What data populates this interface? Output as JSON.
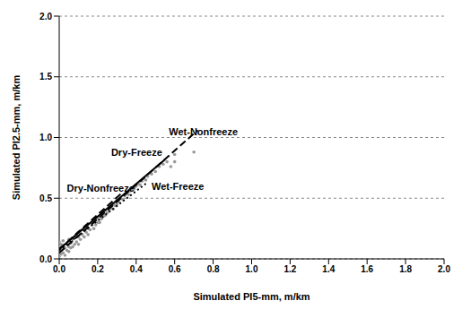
{
  "chart_data": {
    "type": "scatter",
    "x_label": "Simulated PI5-mm, m/km",
    "y_label": "Simulated PI2.5-mm, m/km",
    "xlim": [
      0,
      2
    ],
    "ylim": [
      0,
      2
    ],
    "xticks": [
      {
        "value": 0,
        "label": "0.0"
      },
      0.2,
      0.4,
      0.6,
      0.8,
      {
        "value": 1,
        "label": "1.0"
      },
      1.2,
      1.4,
      1.6,
      1.8,
      {
        "value": 2,
        "label": "2.0"
      }
    ],
    "yticks": [
      {
        "value": 0,
        "label": "0.0"
      },
      0.5,
      {
        "value": 1,
        "label": "1.0"
      },
      1.5,
      {
        "value": 2,
        "label": "2.0"
      }
    ],
    "grid": true,
    "series": [
      {
        "type": "scatter",
        "color": "#999999",
        "marker": "circle",
        "x": [
          0,
          0,
          0,
          0,
          0.01,
          0.01,
          0.01,
          0.02,
          0.02,
          0.02,
          0.03,
          0.03,
          0.04,
          0.04,
          0.05,
          0.05,
          0.05,
          0.06,
          0.06,
          0.07,
          0.07,
          0.08,
          0.08,
          0.09,
          0.1,
          0.1,
          0.1,
          0.11,
          0.12,
          0.12,
          0.13,
          0.14,
          0.14,
          0.15,
          0.15,
          0.16,
          0.17,
          0.18,
          0.18,
          0.19,
          0.2,
          0.2,
          0.21,
          0.22,
          0.22,
          0.23,
          0.24,
          0.24,
          0.25,
          0.26,
          0.27,
          0.28,
          0.28,
          0.29,
          0.3,
          0.3,
          0.31,
          0.32,
          0.33,
          0.34,
          0.35,
          0.36,
          0.37,
          0.38,
          0.39,
          0.4,
          0.41,
          0.42,
          0.43,
          0.44,
          0.45,
          0.46,
          0.48,
          0.5,
          0.52,
          0.54,
          0.56,
          0.58,
          0.6,
          0.6,
          0.7
        ],
        "values": [
          0.02,
          0.06,
          0.1,
          0.14,
          0.04,
          0.08,
          0.12,
          0.05,
          0.1,
          0.15,
          0.03,
          0.09,
          0.07,
          0.12,
          0.06,
          0.1,
          0.16,
          0.09,
          0.13,
          0.1,
          0.16,
          0.12,
          0.18,
          0.14,
          0.12,
          0.18,
          0.22,
          0.16,
          0.2,
          0.24,
          0.18,
          0.22,
          0.27,
          0.2,
          0.25,
          0.24,
          0.28,
          0.25,
          0.3,
          0.28,
          0.3,
          0.34,
          0.3,
          0.33,
          0.37,
          0.35,
          0.36,
          0.4,
          0.38,
          0.4,
          0.42,
          0.41,
          0.45,
          0.44,
          0.45,
          0.48,
          0.47,
          0.5,
          0.49,
          0.52,
          0.54,
          0.53,
          0.56,
          0.57,
          0.58,
          0.6,
          0.62,
          0.61,
          0.64,
          0.66,
          0.65,
          0.68,
          0.7,
          0.72,
          0.76,
          0.78,
          0.8,
          0.76,
          0.8,
          0.86,
          0.88
        ]
      },
      {
        "type": "line",
        "color": "#000000",
        "line_style": "dashed",
        "marker": "none",
        "x": [
          0,
          0.33
        ],
        "values": [
          0.08,
          0.55
        ]
      },
      {
        "type": "line",
        "color": "#000000",
        "line_style": "solid",
        "marker": "none",
        "x": [
          0,
          0.55
        ],
        "values": [
          0.08,
          0.82
        ]
      },
      {
        "type": "line",
        "color": "#000000",
        "line_style": "dashed",
        "marker": "none",
        "x": [
          0,
          0.72
        ],
        "values": [
          0.05,
          1.06
        ]
      },
      {
        "type": "line",
        "color": "#000000",
        "line_style": "dotted",
        "marker": "none",
        "x": [
          0,
          0.45
        ],
        "values": [
          0.07,
          0.62
        ]
      }
    ],
    "annotations": [
      {
        "text": "Dry-Nonfreeze",
        "x": 0.04,
        "y": 0.58
      },
      {
        "text": "Dry-Freeze",
        "x": 0.27,
        "y": 0.88
      },
      {
        "text": "Wet-Nonfreeze",
        "x": 0.57,
        "y": 1.05
      },
      {
        "text": "Wet-Freeze",
        "x": 0.48,
        "y": 0.6
      }
    ]
  }
}
